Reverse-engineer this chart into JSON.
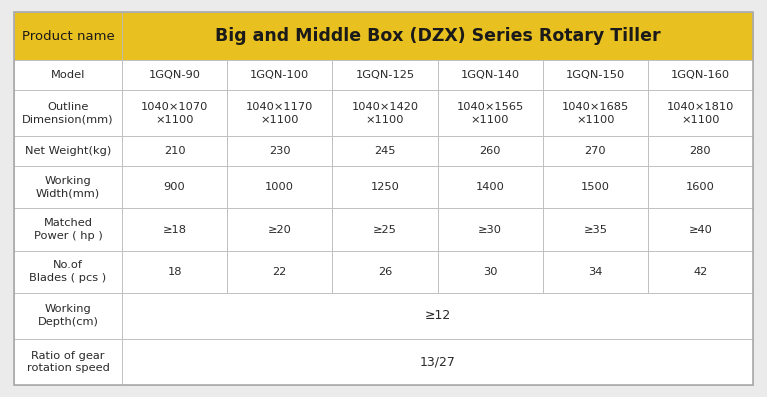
{
  "title": "Big and Middle Box (DZX) Series Rotary Tiller",
  "product_name_label": "Product name",
  "header_bg": "#E8C020",
  "header_text_color": "#1a1a1a",
  "title_text_color": "#1a1a1a",
  "cell_bg": "#FFFFFF",
  "border_color": "#BBBBBB",
  "fig_bg": "#EBEBEB",
  "outer_border_color": "#AAAAAA",
  "rows": [
    {
      "label": "Model",
      "values": [
        "1GQN-90",
        "1GQN-100",
        "1GQN-125",
        "1GQN-140",
        "1GQN-150",
        "1GQN-160"
      ],
      "span": false,
      "label_lines": 1
    },
    {
      "label": "Outline\nDimension(mm)",
      "values": [
        "1040×1070\n×1100",
        "1040×1170\n×1100",
        "1040×1420\n×1100",
        "1040×1565\n×1100",
        "1040×1685\n×1100",
        "1040×1810\n×1100"
      ],
      "span": false,
      "label_lines": 2
    },
    {
      "label": "Net Weight(kg)",
      "values": [
        "210",
        "230",
        "245",
        "260",
        "270",
        "280"
      ],
      "span": false,
      "label_lines": 1
    },
    {
      "label": "Working\nWidth(mm)",
      "values": [
        "900",
        "1000",
        "1250",
        "1400",
        "1500",
        "1600"
      ],
      "span": false,
      "label_lines": 2
    },
    {
      "label": "Matched\nPower ( hp )",
      "values": [
        "≥18",
        "≥20",
        "≥25",
        "≥30",
        "≥35",
        "≥40"
      ],
      "span": false,
      "label_lines": 2
    },
    {
      "label": "No.of\nBlades ( pcs )",
      "values": [
        "18",
        "22",
        "26",
        "30",
        "34",
        "42"
      ],
      "span": false,
      "label_lines": 2
    },
    {
      "label": "Working\nDepth(cm)",
      "values": [
        "≥12"
      ],
      "span": true,
      "label_lines": 2
    },
    {
      "label": "Ratio of gear\nrotation speed",
      "values": [
        "13/27"
      ],
      "span": true,
      "label_lines": 2
    }
  ]
}
